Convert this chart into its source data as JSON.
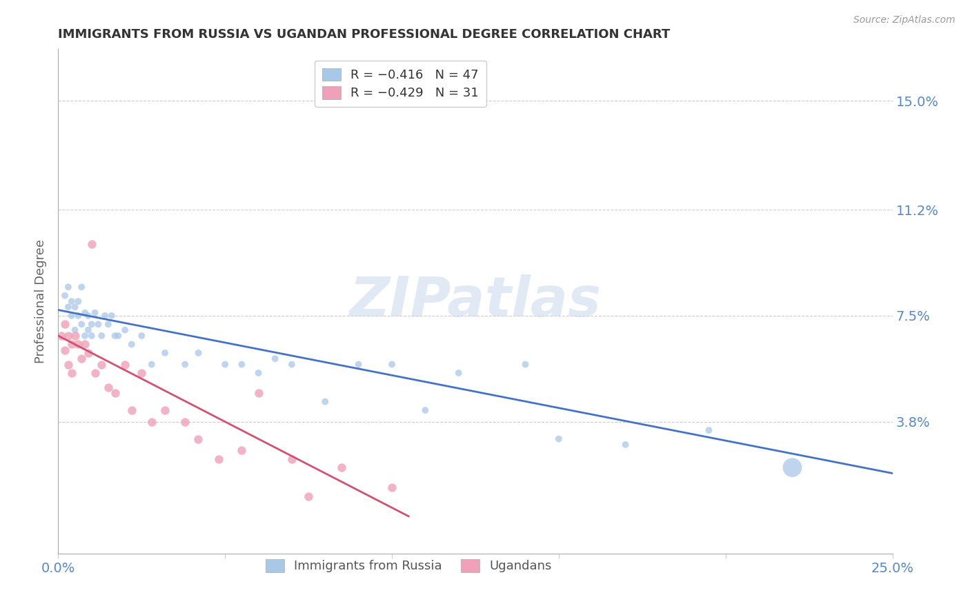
{
  "title": "IMMIGRANTS FROM RUSSIA VS UGANDAN PROFESSIONAL DEGREE CORRELATION CHART",
  "source": "Source: ZipAtlas.com",
  "ylabel": "Professional Degree",
  "ytick_labels": [
    "15.0%",
    "11.2%",
    "7.5%",
    "3.8%"
  ],
  "ytick_values": [
    0.15,
    0.112,
    0.075,
    0.038
  ],
  "xmin": 0.0,
  "xmax": 0.25,
  "ymin": -0.008,
  "ymax": 0.168,
  "russia_color": "#a8c8e8",
  "uganda_color": "#f0a0b8",
  "russia_line_color": "#4472c4",
  "uganda_line_color": "#d45070",
  "background_color": "#ffffff",
  "watermark_text": "ZIPatlas",
  "russia_x": [
    0.002,
    0.003,
    0.003,
    0.004,
    0.004,
    0.005,
    0.005,
    0.006,
    0.006,
    0.007,
    0.007,
    0.008,
    0.008,
    0.009,
    0.009,
    0.01,
    0.01,
    0.011,
    0.012,
    0.013,
    0.014,
    0.015,
    0.016,
    0.017,
    0.018,
    0.02,
    0.022,
    0.025,
    0.028,
    0.032,
    0.038,
    0.042,
    0.05,
    0.055,
    0.06,
    0.065,
    0.07,
    0.08,
    0.09,
    0.1,
    0.11,
    0.12,
    0.14,
    0.15,
    0.17,
    0.195,
    0.22
  ],
  "russia_y": [
    0.082,
    0.078,
    0.085,
    0.08,
    0.075,
    0.078,
    0.07,
    0.075,
    0.08,
    0.085,
    0.072,
    0.076,
    0.068,
    0.075,
    0.07,
    0.072,
    0.068,
    0.076,
    0.072,
    0.068,
    0.075,
    0.072,
    0.075,
    0.068,
    0.068,
    0.07,
    0.065,
    0.068,
    0.058,
    0.062,
    0.058,
    0.062,
    0.058,
    0.058,
    0.055,
    0.06,
    0.058,
    0.045,
    0.058,
    0.058,
    0.042,
    0.055,
    0.058,
    0.032,
    0.03,
    0.035,
    0.022
  ],
  "russia_sizes": [
    50,
    50,
    50,
    50,
    50,
    50,
    50,
    50,
    50,
    50,
    50,
    50,
    50,
    50,
    50,
    50,
    50,
    50,
    50,
    50,
    50,
    50,
    50,
    50,
    50,
    50,
    50,
    50,
    50,
    50,
    50,
    50,
    50,
    50,
    50,
    50,
    50,
    50,
    50,
    50,
    50,
    50,
    50,
    50,
    50,
    50,
    400
  ],
  "uganda_x": [
    0.001,
    0.002,
    0.002,
    0.003,
    0.003,
    0.004,
    0.004,
    0.005,
    0.006,
    0.007,
    0.008,
    0.009,
    0.01,
    0.011,
    0.013,
    0.015,
    0.017,
    0.02,
    0.022,
    0.025,
    0.028,
    0.032,
    0.038,
    0.042,
    0.048,
    0.055,
    0.06,
    0.07,
    0.075,
    0.085,
    0.1
  ],
  "uganda_y": [
    0.068,
    0.072,
    0.063,
    0.068,
    0.058,
    0.065,
    0.055,
    0.068,
    0.065,
    0.06,
    0.065,
    0.062,
    0.1,
    0.055,
    0.058,
    0.05,
    0.048,
    0.058,
    0.042,
    0.055,
    0.038,
    0.042,
    0.038,
    0.032,
    0.025,
    0.028,
    0.048,
    0.025,
    0.012,
    0.022,
    0.015
  ],
  "russia_line_x": [
    0.0,
    0.25
  ],
  "russia_line_y": [
    0.077,
    0.02
  ],
  "uganda_line_x": [
    0.0,
    0.105
  ],
  "uganda_line_y": [
    0.068,
    0.005
  ]
}
